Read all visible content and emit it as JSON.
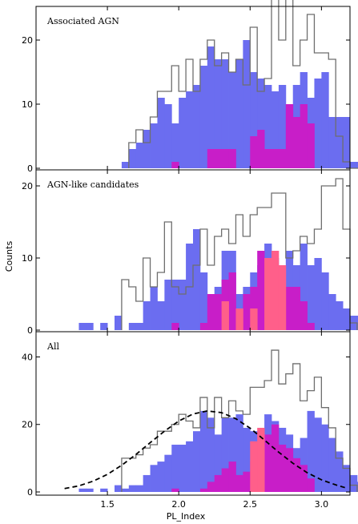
{
  "figure": {
    "xlabel": "PL_Index",
    "ylabel": "Counts"
  },
  "colors": {
    "blue": "#6b6df0",
    "magenta": "#c81ec8",
    "pink": "#ff5f8a",
    "outline": "#6e6e6e",
    "dashed": "#000000"
  },
  "chart_data": [
    {
      "type": "bar",
      "title": "Associated AGN",
      "xlim": [
        1.0,
        3.2
      ],
      "ylim": [
        0,
        25
      ],
      "yticks": [
        0,
        10,
        20
      ],
      "bin_width": 0.05,
      "series": [
        {
          "name": "",
          "style": "outline",
          "bin_start": 1.65,
          "values": [
            4,
            6,
            4,
            8,
            12,
            12,
            16,
            12,
            17,
            12,
            17,
            20,
            16,
            18,
            15,
            17,
            13,
            22,
            12,
            14,
            29,
            20,
            29,
            16,
            20,
            24,
            18,
            18,
            17,
            5,
            1,
            0,
            0,
            0,
            0,
            0.1
          ]
        },
        {
          "name": "",
          "style": "filled-blue",
          "bin_start": 1.6,
          "values": [
            1,
            3,
            4,
            6,
            7,
            11,
            10,
            7,
            11,
            12,
            13,
            16,
            19,
            17,
            17,
            15,
            17,
            20,
            15,
            14,
            13,
            12,
            13,
            9,
            13,
            15,
            11,
            14,
            15,
            8,
            8,
            8,
            1,
            1
          ]
        },
        {
          "name": "",
          "style": "filled-magenta",
          "bin_start": 1.95,
          "values": [
            1,
            0,
            0,
            0,
            0,
            3,
            3,
            3,
            3,
            0,
            0,
            5,
            6,
            3,
            3,
            3,
            10,
            8,
            10,
            7,
            0,
            0
          ]
        }
      ]
    },
    {
      "type": "bar",
      "title": "AGN-like candidates",
      "xlim": [
        1.0,
        3.2
      ],
      "ylim": [
        0,
        22
      ],
      "yticks": [
        0,
        10,
        20
      ],
      "bin_width": 0.05,
      "series": [
        {
          "name": "",
          "style": "outline",
          "bin_start": 1.6,
          "values": [
            7,
            6,
            4,
            10,
            6,
            8,
            15,
            6,
            5,
            6,
            9,
            14,
            9,
            13,
            14,
            12,
            16,
            13,
            16,
            17,
            17,
            19,
            19,
            10,
            11,
            13,
            12,
            14,
            20,
            20,
            21,
            14,
            1
          ]
        },
        {
          "name": "",
          "style": "filled-blue",
          "bin_start": 1.3,
          "values": [
            1,
            1,
            0,
            1,
            0,
            2,
            0,
            1,
            1,
            4,
            6,
            4,
            7,
            7,
            7,
            12,
            14,
            8,
            5,
            6,
            11,
            11,
            5,
            6,
            8,
            9,
            12,
            10,
            8,
            11,
            9,
            12,
            9,
            10,
            8,
            5,
            4,
            3,
            2,
            2,
            1
          ]
        },
        {
          "name": "",
          "style": "filled-magenta",
          "bin_start": 1.95,
          "values": [
            1,
            0,
            0,
            0,
            1,
            5,
            5,
            7,
            8,
            3,
            5,
            6,
            11,
            10,
            7,
            6,
            6,
            6,
            4,
            1
          ]
        },
        {
          "name": "",
          "style": "filled-pink",
          "bin_start": 2.2,
          "values": [
            0,
            0,
            4,
            0,
            3,
            0,
            3,
            0,
            10,
            11,
            9
          ]
        }
      ]
    },
    {
      "type": "bar",
      "title": "All",
      "xlim": [
        1.0,
        3.2
      ],
      "ylim": [
        0,
        47
      ],
      "yticks": [
        0,
        20,
        40
      ],
      "xticks": [
        1.5,
        2.0,
        2.5,
        3.0
      ],
      "bin_width": 0.05,
      "series": [
        {
          "name": "",
          "style": "outline",
          "bin_start": 1.6,
          "values": [
            10,
            10,
            11,
            13,
            14,
            18,
            18,
            20,
            23,
            21,
            19,
            28,
            19,
            28,
            22,
            27,
            24,
            23,
            31,
            31,
            33,
            42,
            32,
            35,
            38,
            27,
            30,
            34,
            25,
            19,
            10,
            7,
            2
          ]
        },
        {
          "name": "",
          "style": "filled-blue",
          "bin_start": 1.3,
          "values": [
            1,
            1,
            0,
            1,
            0,
            2,
            1,
            2,
            2,
            5,
            8,
            9,
            11,
            14,
            14,
            15,
            18,
            24,
            22,
            17,
            22,
            22,
            23,
            19,
            18,
            16,
            23,
            21,
            19,
            17,
            13,
            16,
            24,
            22,
            20,
            16,
            12,
            8,
            5,
            3,
            1
          ]
        },
        {
          "name": "",
          "style": "filled-magenta",
          "bin_start": 1.95,
          "values": [
            1,
            0,
            0,
            0,
            1,
            3,
            5,
            7,
            9,
            5,
            6,
            9,
            14,
            17,
            20,
            14,
            13,
            10,
            8,
            4
          ]
        },
        {
          "name": "",
          "style": "filled-pink",
          "bin_start": 2.5,
          "values": [
            15,
            19
          ]
        },
        {
          "name": "",
          "style": "dashed-curve",
          "x": [
            1.2,
            1.3,
            1.4,
            1.5,
            1.6,
            1.7,
            1.8,
            1.9,
            2.0,
            2.1,
            2.2,
            2.3,
            2.4,
            2.5,
            2.6,
            2.7,
            2.8,
            2.9,
            3.0,
            3.1,
            3.18
          ],
          "y": [
            1,
            1.8,
            3.2,
            5.2,
            7.9,
            11.1,
            14.6,
            18,
            21,
            23.1,
            24,
            23.5,
            21.7,
            18.9,
            15.4,
            11.8,
            8.5,
            5.7,
            3.6,
            2.1,
            1.1
          ]
        }
      ]
    }
  ]
}
